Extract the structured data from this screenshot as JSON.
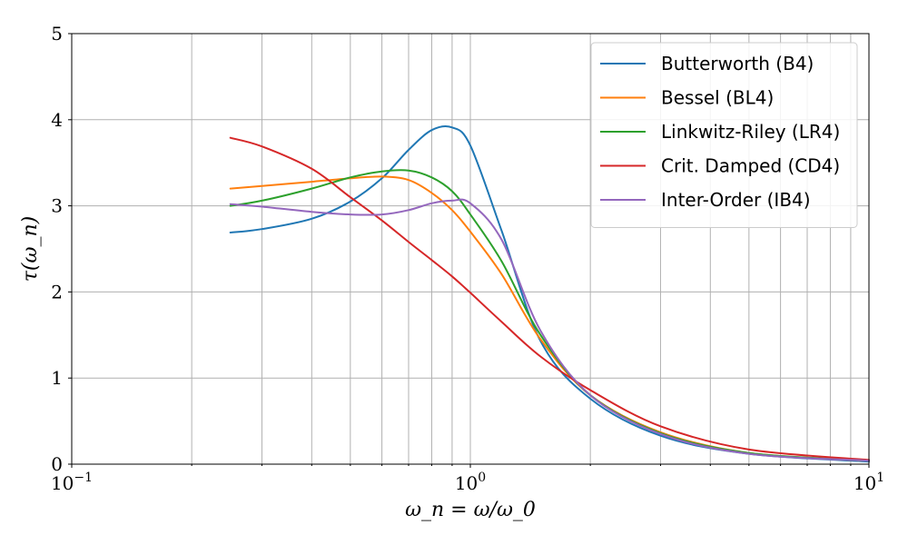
{
  "chart_data": {
    "type": "line",
    "title": "",
    "xlabel": "ω_n = ω/ω_0",
    "ylabel": "τ(ω_n)",
    "xscale": "log",
    "xlim": [
      0.1,
      10
    ],
    "ylim": [
      0,
      5
    ],
    "grid": true,
    "legend_position": "top-right",
    "x_ticks": [
      {
        "value": 0.1,
        "base": "10",
        "exp": "−1"
      },
      {
        "value": 1,
        "base": "10",
        "exp": "0"
      },
      {
        "value": 10,
        "base": "10",
        "exp": "1"
      }
    ],
    "y_ticks": [
      "0",
      "1",
      "2",
      "3",
      "4",
      "5"
    ],
    "x": [
      0.25,
      0.3,
      0.4,
      0.5,
      0.6,
      0.7,
      0.8,
      0.9,
      1.0,
      1.2,
      1.5,
      2.0,
      3.0,
      5.0,
      10.0
    ],
    "series": [
      {
        "name": "Butterworth (B4)",
        "color": "#1f77b4",
        "values": [
          2.69,
          2.73,
          2.85,
          3.05,
          3.32,
          3.65,
          3.88,
          3.91,
          3.7,
          2.7,
          1.43,
          0.76,
          0.33,
          0.12,
          0.03
        ]
      },
      {
        "name": "Bessel (BL4)",
        "color": "#ff7f0e",
        "values": [
          3.2,
          3.23,
          3.28,
          3.32,
          3.34,
          3.3,
          3.15,
          2.95,
          2.7,
          2.2,
          1.45,
          0.8,
          0.37,
          0.13,
          0.04
        ]
      },
      {
        "name": "Linkwitz-Riley (LR4)",
        "color": "#2ca02c",
        "values": [
          3.0,
          3.06,
          3.2,
          3.33,
          3.4,
          3.41,
          3.33,
          3.17,
          2.9,
          2.35,
          1.5,
          0.8,
          0.36,
          0.13,
          0.04
        ]
      },
      {
        "name": "Crit. Damped (CD4)",
        "color": "#d62728",
        "values": [
          3.79,
          3.69,
          3.43,
          3.1,
          2.83,
          2.58,
          2.37,
          2.18,
          1.99,
          1.65,
          1.25,
          0.86,
          0.44,
          0.17,
          0.05
        ]
      },
      {
        "name": "Inter-Order (IB4)",
        "color": "#9467bd",
        "values": [
          3.02,
          2.99,
          2.93,
          2.9,
          2.9,
          2.95,
          3.03,
          3.06,
          3.03,
          2.6,
          1.55,
          0.8,
          0.35,
          0.12,
          0.04
        ]
      }
    ]
  }
}
